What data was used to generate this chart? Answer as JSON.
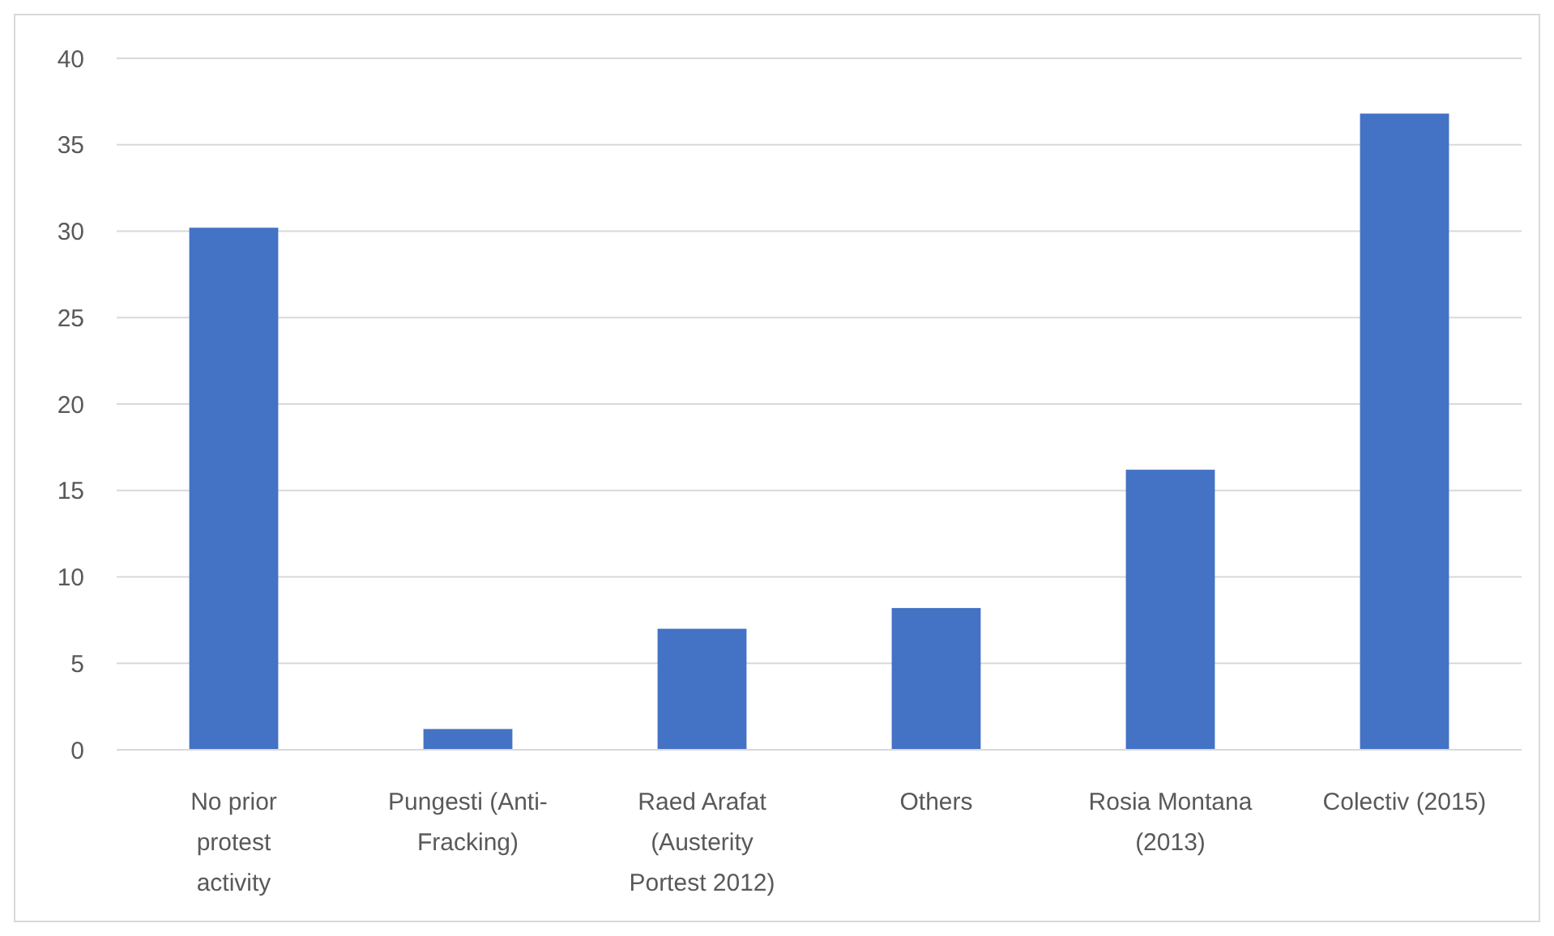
{
  "chart_data": {
    "type": "bar",
    "categories": [
      "No prior protest activity",
      "Pungesti (Anti-Fracking)",
      "Raed Arafat (Austerity Portest 2012)",
      "Others",
      "Rosia Montana (2013)",
      "Colectiv (2015)"
    ],
    "values": [
      30.2,
      1.2,
      7.0,
      8.2,
      16.2,
      36.8
    ],
    "color": "#4472c4",
    "ylim": [
      0,
      40
    ],
    "yticks": [
      0,
      5,
      10,
      15,
      20,
      25,
      30,
      35,
      40
    ],
    "grid": "y"
  }
}
